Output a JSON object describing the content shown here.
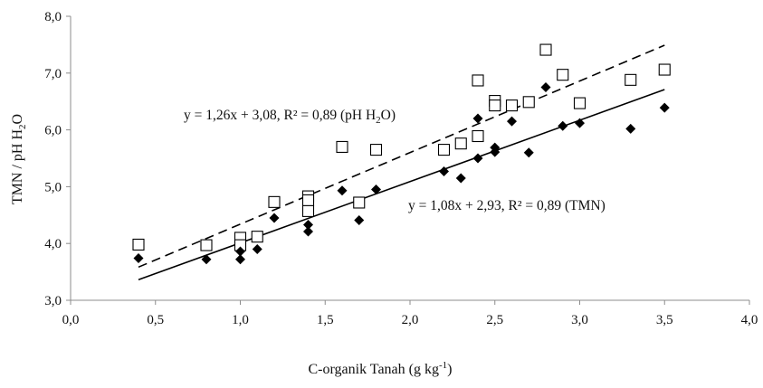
{
  "chart_data": {
    "type": "scatter",
    "xlabel": "C-organik Tanah (g kg",
    "xlabel_sup": "-1",
    "xlabel_suffix": ")",
    "ylabel": "TMN / pH H",
    "ylabel_sub": "2",
    "ylabel_suffix": "O",
    "xlim": [
      0.0,
      4.0
    ],
    "ylim": [
      3.0,
      8.0
    ],
    "x_ticks": [
      "0,0",
      "0,5",
      "1,0",
      "1,5",
      "2,0",
      "2,5",
      "3,0",
      "3,5",
      "4,0"
    ],
    "y_ticks": [
      "3,0",
      "4,0",
      "5,0",
      "6,0",
      "7,0",
      "8,0"
    ],
    "grid": false,
    "legend": "none",
    "series": [
      {
        "name": "pH H2O",
        "marker": "open-square",
        "points": [
          [
            0.4,
            3.98
          ],
          [
            0.8,
            3.97
          ],
          [
            1.0,
            4.1
          ],
          [
            1.0,
            3.97
          ],
          [
            1.1,
            4.12
          ],
          [
            1.2,
            4.73
          ],
          [
            1.4,
            4.83
          ],
          [
            1.4,
            4.76
          ],
          [
            1.4,
            4.57
          ],
          [
            1.6,
            5.7
          ],
          [
            1.7,
            4.72
          ],
          [
            1.8,
            5.65
          ],
          [
            2.2,
            5.65
          ],
          [
            2.3,
            5.76
          ],
          [
            2.4,
            6.87
          ],
          [
            2.4,
            5.89
          ],
          [
            2.5,
            6.51
          ],
          [
            2.5,
            6.43
          ],
          [
            2.6,
            6.43
          ],
          [
            2.7,
            6.49
          ],
          [
            2.8,
            7.41
          ],
          [
            2.9,
            6.97
          ],
          [
            3.0,
            6.47
          ],
          [
            3.3,
            6.88
          ],
          [
            3.5,
            7.06
          ]
        ],
        "trendline": {
          "slope": 1.26,
          "intercept": 3.08,
          "style": "dashed",
          "x_range": [
            0.4,
            3.5
          ]
        },
        "equation": "y = 1,26x + 3,08, R² = 0,89 (pH H",
        "equation_sub": "2",
        "equation_suffix": "O)"
      },
      {
        "name": "TMN",
        "marker": "filled-diamond",
        "points": [
          [
            0.4,
            3.74
          ],
          [
            0.8,
            3.72
          ],
          [
            1.0,
            3.86
          ],
          [
            1.0,
            3.72
          ],
          [
            1.1,
            3.9
          ],
          [
            1.2,
            4.45
          ],
          [
            1.4,
            4.33
          ],
          [
            1.4,
            4.21
          ],
          [
            1.6,
            4.93
          ],
          [
            1.7,
            4.41
          ],
          [
            1.8,
            4.95
          ],
          [
            2.2,
            5.27
          ],
          [
            2.3,
            5.15
          ],
          [
            2.4,
            6.2
          ],
          [
            2.4,
            5.5
          ],
          [
            2.5,
            5.69
          ],
          [
            2.5,
            5.61
          ],
          [
            2.6,
            6.15
          ],
          [
            2.7,
            5.6
          ],
          [
            2.8,
            6.75
          ],
          [
            2.9,
            6.07
          ],
          [
            3.0,
            6.12
          ],
          [
            3.3,
            6.02
          ],
          [
            3.5,
            6.39
          ]
        ],
        "trendline": {
          "slope": 1.08,
          "intercept": 2.93,
          "style": "solid",
          "x_range": [
            0.4,
            3.5
          ]
        },
        "equation": "y = 1,08x + 2,93, R² = 0,89 (TMN)"
      }
    ]
  }
}
